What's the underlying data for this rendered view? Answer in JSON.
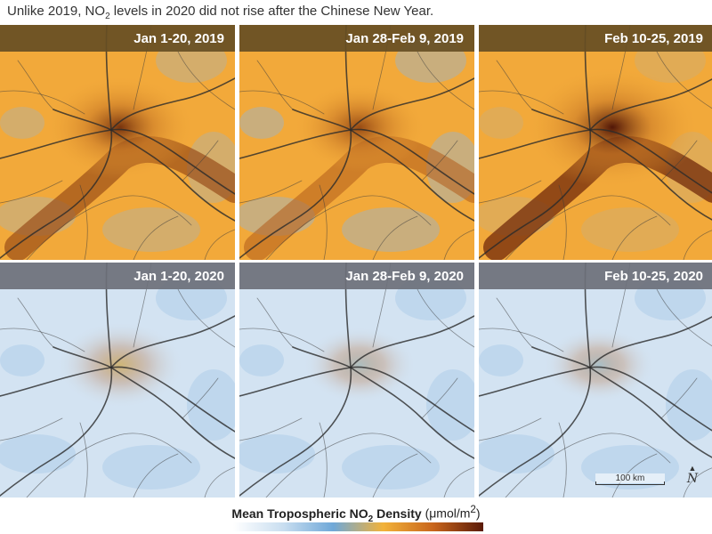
{
  "caption": {
    "before": "Unlike 2019, NO",
    "sub": "2",
    "after": " levels in 2020 did not rise after the Chinese New Year."
  },
  "panels": [
    {
      "label": "Jan 1-20, 2019",
      "year": "2019",
      "intensity": 0.62
    },
    {
      "label": "Jan 28-Feb 9, 2019",
      "year": "2019",
      "intensity": 0.35
    },
    {
      "label": "Feb 10-25, 2019",
      "year": "2019",
      "intensity": 0.95
    },
    {
      "label": "Jan 1-20, 2020",
      "year": "2020",
      "intensity": 0.3
    },
    {
      "label": "Jan 28-Feb 9, 2020",
      "year": "2020",
      "intensity": 0.1
    },
    {
      "label": "Feb 10-25, 2020",
      "year": "2020",
      "intensity": 0.08
    }
  ],
  "scale_bar": {
    "label": "100 km"
  },
  "north_arrow": {
    "letter": "N",
    "marker": "▲"
  },
  "legend": {
    "title_bold": "Mean Tropospheric NO",
    "title_sub": "2",
    "title_bold_after": " Density",
    "units_before": " (μmol/m",
    "units_sup": "2",
    "units_after": ")",
    "colors": [
      "#ffffff",
      "#c9def0",
      "#6fa8d8",
      "#f2b23a",
      "#c8651c",
      "#5a1a08"
    ]
  },
  "colors": {
    "bar_2019": "#664e24",
    "bar_2020": "#6c707a",
    "base_2019": "#f2a93a",
    "base_2020": "#d3e3f2"
  }
}
